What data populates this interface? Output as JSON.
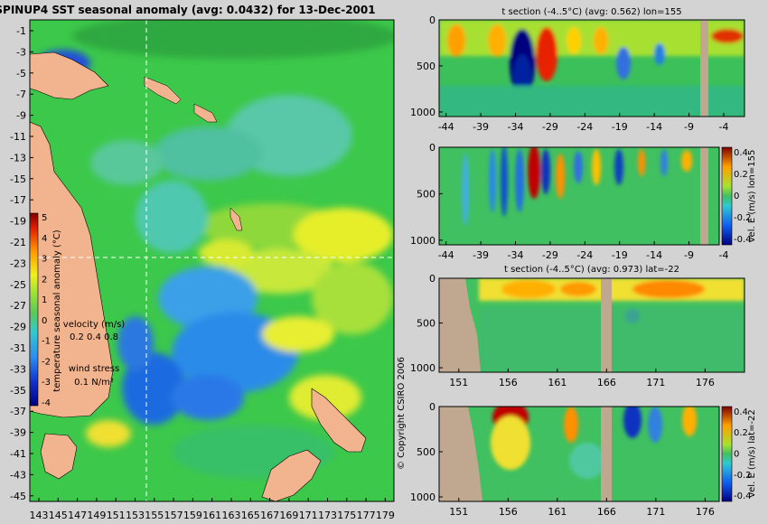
{
  "chart_data": [
    {
      "type": "heatmap",
      "title": "SPINUP4 SST seasonal anomaly (avg: 0.0432) for 13-Dec-2001",
      "x_ticks": [
        "143",
        "145",
        "147",
        "149",
        "151",
        "153",
        "155",
        "157",
        "159",
        "161",
        "163",
        "165",
        "167",
        "169",
        "171",
        "173",
        "175",
        "177",
        "179"
      ],
      "y_ticks": [
        "-1",
        "-3",
        "-5",
        "-7",
        "-9",
        "-11",
        "-13",
        "-15",
        "-17",
        "-19",
        "-21",
        "-23",
        "-25",
        "-27",
        "-29",
        "-31",
        "-33",
        "-35",
        "-37",
        "-39",
        "-41",
        "-43",
        "-45"
      ],
      "xlim": [
        143,
        180
      ],
      "ylim": [
        -45,
        0
      ],
      "colorbar": {
        "label": "temperature seasonal anomaly (°C)",
        "ticks": [
          "5",
          "4",
          "3",
          "2",
          "1",
          "0",
          "-1",
          "-2",
          "-3",
          "-4"
        ],
        "range": [
          -4,
          5
        ]
      },
      "legend": {
        "velocity_label": "velocity (m/s)",
        "velocity_values": "0.2 0.4 0.8",
        "wind_label": "wind stress",
        "wind_value": "0.1 N/m²"
      },
      "crosshair": {
        "lon": 155,
        "lat": -22
      }
    },
    {
      "type": "heatmap",
      "title": "t section (-4..5°C) (avg: 0.562) lon=155",
      "x_ticks": [
        "-44",
        "-39",
        "-34",
        "-29",
        "-24",
        "-19",
        "-14",
        "-9",
        "-4"
      ],
      "y_ticks": [
        "0",
        "500",
        "1000"
      ],
      "xlim": [
        -45,
        -1
      ],
      "ylim": [
        1050,
        0
      ]
    },
    {
      "type": "heatmap",
      "title": "",
      "x_ticks": [
        "-44",
        "-39",
        "-34",
        "-29",
        "-24",
        "-19",
        "-14",
        "-9",
        "-4"
      ],
      "y_ticks": [
        "0",
        "500",
        "1000"
      ],
      "colorbar": {
        "label": "vel. E (m/s) lon=155",
        "ticks": [
          "0.4",
          "0.2",
          "0",
          "-0.2",
          "-0.4"
        ],
        "range": [
          -0.45,
          0.45
        ]
      }
    },
    {
      "type": "heatmap",
      "title": "t section (-4..5°C) (avg: 0.973) lat=-22",
      "x_ticks": [
        "151",
        "156",
        "161",
        "166",
        "171",
        "176"
      ],
      "y_ticks": [
        "0",
        "500",
        "1000"
      ],
      "xlim": [
        149,
        180
      ],
      "ylim": [
        1050,
        0
      ]
    },
    {
      "type": "heatmap",
      "title": "",
      "x_ticks": [
        "151",
        "156",
        "161",
        "166",
        "171",
        "176"
      ],
      "y_ticks": [
        "0",
        "500",
        "1000"
      ],
      "colorbar": {
        "label": "vel. E (m/s) lat=-22",
        "ticks": [
          "0.4",
          "0.2",
          "0",
          "-0.2",
          "-0.4"
        ],
        "range": [
          -0.45,
          0.45
        ]
      }
    }
  ],
  "copyright": "© Copyright CSIRO 2006"
}
